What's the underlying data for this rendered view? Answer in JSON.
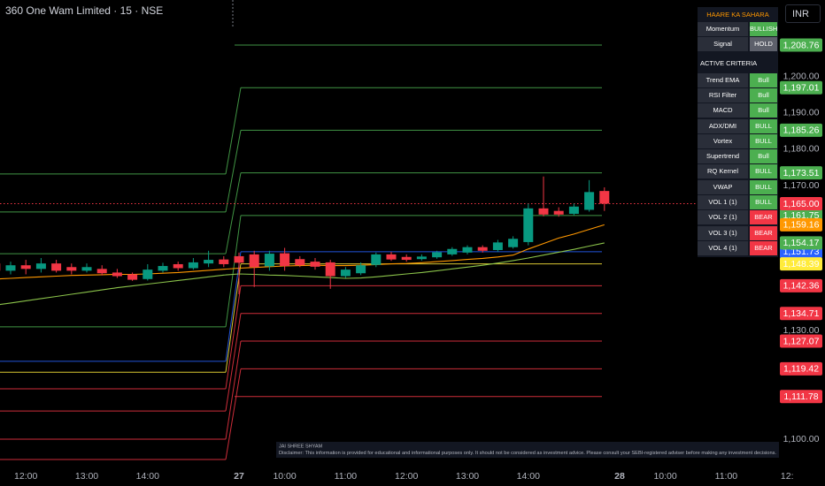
{
  "chart_data": {
    "type": "candlestick",
    "title": "360 One Wam Limited · 15 · NSE",
    "categories": [
      null,
      null,
      "12:00",
      null,
      null,
      null,
      "13:00",
      null,
      null,
      null,
      "14:00",
      null,
      null,
      null,
      null,
      null,
      "27",
      null,
      null,
      "10:00",
      null,
      null,
      null,
      "11:00",
      null,
      null,
      null,
      "12:00",
      null,
      null,
      null,
      "13:00",
      null,
      null,
      null,
      "14:00",
      null,
      null,
      null,
      null,
      null,
      "28",
      null,
      null,
      "10:00",
      null,
      null,
      null,
      "11:00",
      null,
      null,
      null,
      "12:"
    ],
    "open": [
      1148.5,
      1146.5,
      1148,
      1147,
      1148.5,
      1147.5,
      1146.5,
      1147,
      1146,
      1145.5,
      1144.2,
      1146.5,
      1148.3,
      1147.2,
      1148.5,
      1149.6,
      1150.5,
      1151,
      1147.7,
      1151.3,
      1149.7,
      1149,
      1148.8,
      1145,
      1145.8,
      1148.1,
      1151,
      1150.3,
      1149.7,
      1150.2,
      1151,
      1151.5,
      1153,
      1152.2,
      1153,
      1154.4,
      1163.7,
      1163,
      1162.2,
      1163.3,
      1168.5,
      null,
      null,
      null,
      null,
      null,
      null,
      null,
      null,
      null,
      null,
      null,
      null
    ],
    "high": [
      1149.5,
      1149,
      1149.5,
      1150,
      1149.5,
      1148.5,
      1148.5,
      1148,
      1147,
      1146,
      1148.3,
      1148.7,
      1149,
      1150,
      1152,
      1150.5,
      1151.5,
      1152,
      1152,
      1152.8,
      1150.5,
      1150,
      1149.5,
      1147.5,
      1148.8,
      1151.5,
      1151.7,
      1151,
      1151,
      1152,
      1153,
      1153.5,
      1153.5,
      1155,
      1156,
      1165,
      1172.5,
      1164,
      1165,
      1171.5,
      1169.5,
      null,
      null,
      null,
      null,
      null,
      null,
      null,
      null,
      null,
      null,
      null,
      null
    ],
    "low": [
      1145.5,
      1145.5,
      1145.5,
      1146,
      1146,
      1145.5,
      1146,
      1145.2,
      1144.5,
      1143.7,
      1143.8,
      1146,
      1146.5,
      1146.8,
      1147.5,
      1147.5,
      1140,
      1142,
      1146.5,
      1146.5,
      1147.5,
      1146.8,
      1141.5,
      1144.5,
      1145.3,
      1147.5,
      1149.2,
      1149,
      1149.3,
      1149.8,
      1150.6,
      1151,
      1151.5,
      1151.7,
      1152.6,
      1153.5,
      1161.5,
      1161.4,
      1161.8,
      1162.8,
      1163,
      null,
      null,
      null,
      null,
      null,
      null,
      null,
      null,
      null,
      null,
      null,
      null
    ],
    "close": [
      1146.5,
      1148,
      1147,
      1148.5,
      1146.5,
      1146.5,
      1147.5,
      1145.8,
      1145,
      1144,
      1146.8,
      1147.8,
      1147.2,
      1148.8,
      1149.5,
      1148.3,
      1148.7,
      1147.5,
      1151.2,
      1147.8,
      1148,
      1147.6,
      1145,
      1146.8,
      1148,
      1151,
      1149.6,
      1149.5,
      1150.4,
      1151.6,
      1152.5,
      1153,
      1152,
      1154.3,
      1155.3,
      1163.7,
      1162,
      1162,
      1164.2,
      1168.2,
      1165,
      null,
      null,
      null,
      null,
      null,
      null,
      null,
      null,
      null,
      null,
      null,
      null
    ],
    "up_color": "#089981",
    "down_color": "#f23645",
    "series": [
      {
        "color": "#ff9800",
        "values": [
          1144.2,
          1144.4,
          1144.6,
          1144.8,
          1145,
          1145.2,
          1145.3,
          1145.4,
          1145.5,
          1145.5,
          1145.6,
          1145.8,
          1146,
          1146.3,
          1146.6,
          1146.9,
          1147.2,
          1147.4,
          1147.6,
          1147.8,
          1147.9,
          1148,
          1147.9,
          1147.9,
          1148,
          1148.2,
          1148.4,
          1148.5,
          1148.7,
          1149,
          1149.3,
          1149.6,
          1149.9,
          1150.3,
          1150.8,
          1152.5,
          1154,
          1155.5,
          1156.6,
          1157.9,
          1159.16,
          null,
          null,
          null,
          null,
          null,
          null,
          null,
          null,
          null,
          null,
          null,
          null
        ]
      },
      {
        "color": "#8bc34a",
        "values": [
          1137,
          1137.6,
          1138.2,
          1138.8,
          1139.4,
          1140,
          1140.6,
          1141.2,
          1141.8,
          1142.3,
          1142.8,
          1143.3,
          1143.8,
          1144.3,
          1144.8,
          1145.3,
          1145.6,
          1145.5,
          1145.3,
          1145.2,
          1145,
          1144.8,
          1144.6,
          1144.4,
          1144.5,
          1144.8,
          1145.2,
          1145.6,
          1146,
          1146.5,
          1147,
          1147.5,
          1148,
          1148.6,
          1149.3,
          1150,
          1150.8,
          1151.6,
          1152.4,
          1153.3,
          1154.17,
          null,
          null,
          null,
          null,
          null,
          null,
          null,
          null,
          null,
          null,
          null,
          null
        ]
      }
    ],
    "levels": [
      {
        "value": 1208.76,
        "value_label": "1,208.76",
        "color": "#4caf50"
      },
      {
        "value": 1197.01,
        "value_label": "1,197.01",
        "color": "#4caf50",
        "prev": 1173.2
      },
      {
        "value": 1185.26,
        "value_label": "1,185.26",
        "color": "#4caf50",
        "prev": 1162.7
      },
      {
        "value": 1173.51,
        "value_label": "1,173.51",
        "color": "#4caf50",
        "prev": 1151.2
      },
      {
        "value": 1161.75,
        "value_label": "1,161.75",
        "color": "#4caf50",
        "prev": 1131
      },
      {
        "value": 1151.73,
        "value_label": "1,151.73",
        "color": "#2962ff",
        "prev": 1121.5
      },
      {
        "value": 1148.39,
        "value_label": "1,148.39",
        "color": "#ffeb3b",
        "text_color": "#000000",
        "prev": 1118.5
      },
      {
        "value": 1142.36,
        "value_label": "1,142.36",
        "color": "#f23645",
        "prev": 1113.9
      },
      {
        "value": 1134.71,
        "value_label": "1,134.71",
        "color": "#f23645",
        "prev": 1107.8
      },
      {
        "value": 1127.07,
        "value_label": "1,127.07",
        "color": "#f23645",
        "prev": 1100
      },
      {
        "value": 1119.42,
        "value_label": "1,119.42",
        "color": "#f23645",
        "prev": 1094.4
      },
      {
        "value": 1111.78,
        "value_label": "1,111.78",
        "color": "#f23645"
      }
    ],
    "price_labels": [
      {
        "value": 1165,
        "value_label": "1,165.00",
        "color": "#f23645",
        "dotted_line": true
      },
      {
        "value": 1159.16,
        "value_label": "1,159.16",
        "color": "#ff9800"
      },
      {
        "value": 1154.17,
        "value_label": "1,154.17",
        "color": "#4caf50"
      }
    ],
    "ylim": [
      1092.7,
      1221.2
    ],
    "yticks": [
      {
        "value": 1200,
        "label": "1,200.00"
      },
      {
        "value": 1190,
        "label": "1,190.00"
      },
      {
        "value": 1180,
        "label": "1,180.00"
      },
      {
        "value": 1170,
        "label": "1,170.00"
      },
      {
        "value": 1130,
        "label": "1,130.00"
      },
      {
        "value": 1100,
        "label": "1,100.00"
      }
    ],
    "grid": false
  },
  "currency": "INR",
  "panel": {
    "title": "HAARE KA SAHARA",
    "summary": [
      {
        "label": "Momentum",
        "status": "BULLISH",
        "color": "#4caf50"
      },
      {
        "label": "Signal",
        "status": "HOLD",
        "color": "#5d606b"
      }
    ],
    "section": "ACTIVE CRITERIA",
    "criteria": [
      {
        "label": "Trend EMA",
        "status": "Bull",
        "color": "#4caf50"
      },
      {
        "label": "RSI Filter",
        "status": "Bull",
        "color": "#4caf50"
      },
      {
        "label": "MACD",
        "status": "Bull",
        "color": "#4caf50"
      },
      {
        "label": "ADX/DMI",
        "status": "BULL",
        "color": "#4caf50"
      },
      {
        "label": "Vortex",
        "status": "BULL",
        "color": "#4caf50"
      },
      {
        "label": "Supertrend",
        "status": "Bull",
        "color": "#4caf50"
      },
      {
        "label": "RQ Kernel",
        "status": "BULL",
        "color": "#4caf50"
      },
      {
        "label": "VWAP",
        "status": "BULL",
        "color": "#4caf50"
      },
      {
        "label": "VOL 1 (1)",
        "status": "BULL",
        "color": "#4caf50"
      },
      {
        "label": "VOL 2 (1)",
        "status": "BEAR",
        "color": "#f23645"
      },
      {
        "label": "VOL 3 (1)",
        "status": "BEAR",
        "color": "#f23645"
      },
      {
        "label": "VOL 4 (1)",
        "status": "BEAR",
        "color": "#f23645"
      }
    ]
  },
  "footer": {
    "heading": "JAI SHREE SHYAM",
    "disclaimer": "Disclaimer: This information is provided for educational and informational purposes only. It should not be considered as investment advice. Please consult your SEBI-registered adviser before making any investment decisions."
  }
}
